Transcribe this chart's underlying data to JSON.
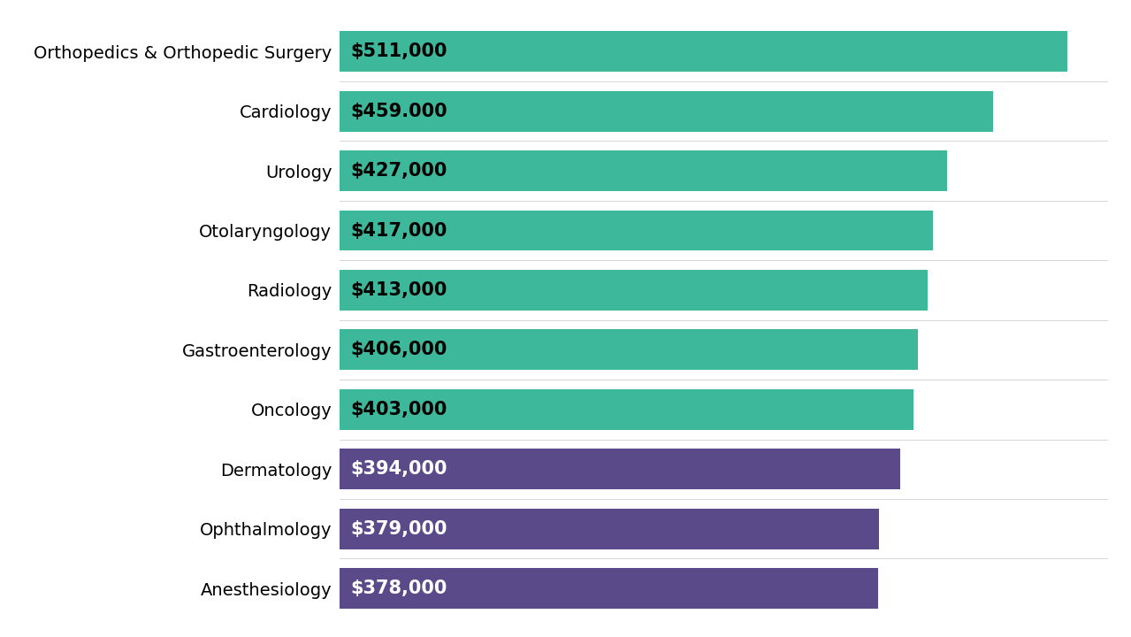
{
  "specialties": [
    "Orthopedics & Orthopedic Surgery",
    "Cardiology",
    "Urology",
    "Otolaryngology",
    "Radiology",
    "Gastroenterology",
    "Oncology",
    "Dermatology",
    "Ophthalmology",
    "Anesthesiology"
  ],
  "values": [
    511000,
    459000,
    427000,
    417000,
    413000,
    406000,
    403000,
    394000,
    379000,
    378000
  ],
  "labels": [
    "$511,000",
    "$459.000",
    "$427,000",
    "$417,000",
    "$413,000",
    "$406,000",
    "$403,000",
    "$394,000",
    "$379,000",
    "$378,000"
  ],
  "colors": [
    "#3db89a",
    "#3db89a",
    "#3db89a",
    "#3db89a",
    "#3db89a",
    "#3db89a",
    "#3db89a",
    "#5b4a8a",
    "#5b4a8a",
    "#5b4a8a"
  ],
  "label_text_colors": [
    "#000000",
    "#000000",
    "#000000",
    "#000000",
    "#000000",
    "#000000",
    "#000000",
    "#ffffff",
    "#ffffff",
    "#ffffff"
  ],
  "background_color": "#ffffff",
  "xlim": [
    0,
    540000
  ],
  "bar_height": 0.68,
  "label_fontsize": 15,
  "category_fontsize": 14
}
